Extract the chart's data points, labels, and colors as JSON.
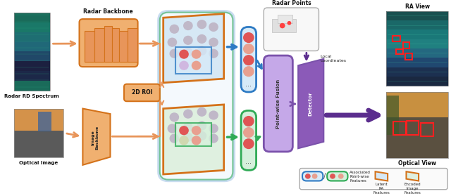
{
  "bg_color": "#ffffff",
  "orange_light": "#F5C5A3",
  "orange_mid": "#E8955A",
  "orange_dark": "#D4721A",
  "orange_bb": "#F0B070",
  "blue_pill": "#D6EAF8",
  "blue_border": "#2E7BC4",
  "blue_arrow": "#2E7BC4",
  "green_pill": "#D5F0DC",
  "green_border": "#2EAA55",
  "green_arrow": "#2EAA55",
  "purple_fusion": "#C5A8E8",
  "purple_border": "#7B52AB",
  "purple_detector": "#8B5AB8",
  "purple_arrow": "#5B2D8E",
  "orange_panel_border": "#D4721A",
  "blue_panel_fill": "#D6E8F5",
  "green_panel_fill": "#DFF0E0",
  "dot_red": "#E05555",
  "dot_salmon": "#E8A090",
  "dot_gray": "#C0B8C8",
  "radar_pts_bg": "#F0F0F0",
  "teal1": "#1A6B5A",
  "teal2": "#1A7868",
  "teal3": "#206878",
  "teal4": "#246080",
  "teal5": "#204868",
  "teal_purple": "#1C2040",
  "labels": {
    "radar_rd": "Radar RD Spectrum",
    "optical": "Optical Image",
    "radar_bb": "Radar Backbone",
    "image_bb": "Image\nBackbone",
    "roi_2d": "2D ROI",
    "pointwise": "Point-wise Fusion",
    "detector": "Detector",
    "radar_pts": "Radar Points",
    "local_coord": "Local\ncoordinates",
    "ra_view": "RA View",
    "optical_view": "Optical View",
    "assoc": "Associated\nPoint-wise\nFeatures",
    "latent": "Latent\nRA\nFeatures",
    "encoded": "Encoded\nImage\nFeatures"
  }
}
